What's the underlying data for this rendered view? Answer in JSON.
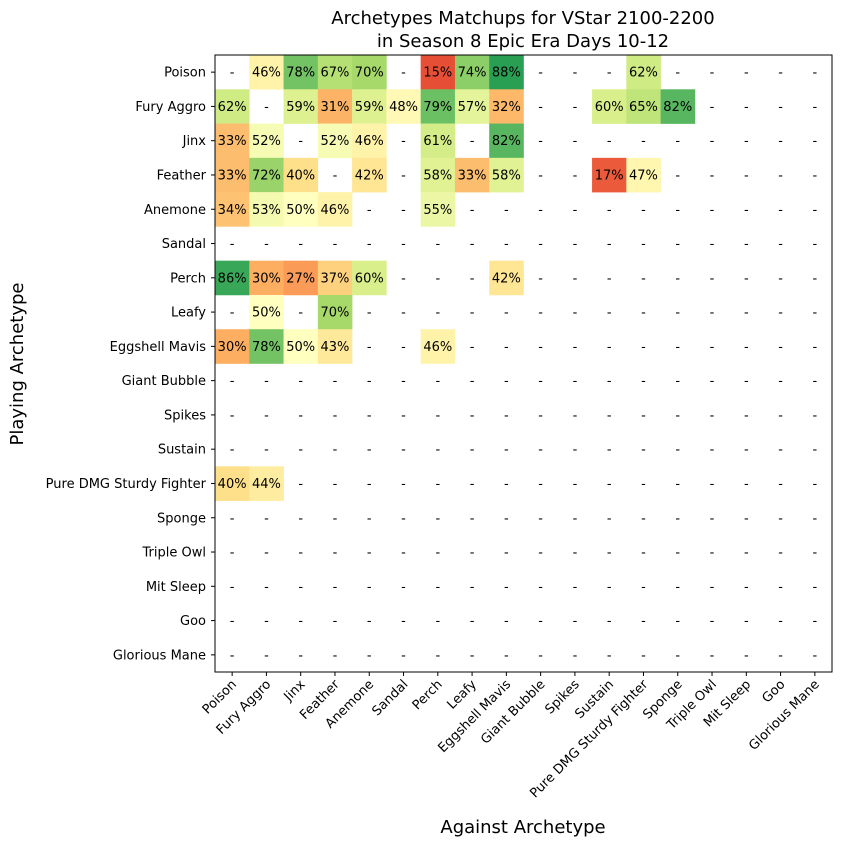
{
  "chart_data": {
    "type": "heatmap",
    "title": [
      "Archetypes Matchups for VStar 2100-2200",
      "in Season 8 Epic Era Days 10-12"
    ],
    "xlabel": "Against Archetype",
    "ylabel": "Playing Archetype",
    "rows": [
      "Poison",
      "Fury Aggro",
      "Jinx",
      "Feather",
      "Anemone",
      "Sandal",
      "Perch",
      "Leafy",
      "Eggshell Mavis",
      "Giant Bubble",
      "Spikes",
      "Sustain",
      "Pure DMG Sturdy Fighter",
      "Sponge",
      "Triple Owl",
      "Mit Sleep",
      "Goo",
      "Glorious Mane"
    ],
    "columns": [
      "Poison",
      "Fury Aggro",
      "Jinx",
      "Feather",
      "Anemone",
      "Sandal",
      "Perch",
      "Leafy",
      "Eggshell Mavis",
      "Giant Bubble",
      "Spikes",
      "Sustain",
      "Pure DMG Sturdy Fighter",
      "Sponge",
      "Triple Owl",
      "Mit Sleep",
      "Goo",
      "Glorious Mane"
    ],
    "missing_label": "-",
    "value_format": "percent",
    "color_scale": "red-yellow-green",
    "color_range": [
      0,
      100
    ],
    "values": [
      [
        null,
        46,
        78,
        67,
        70,
        null,
        15,
        74,
        88,
        null,
        null,
        null,
        62,
        null,
        null,
        null,
        null,
        null
      ],
      [
        62,
        null,
        59,
        31,
        59,
        48,
        79,
        57,
        32,
        null,
        null,
        60,
        65,
        82,
        null,
        null,
        null,
        null
      ],
      [
        33,
        52,
        null,
        52,
        46,
        null,
        61,
        null,
        82,
        null,
        null,
        null,
        null,
        null,
        null,
        null,
        null,
        null
      ],
      [
        33,
        72,
        40,
        null,
        42,
        null,
        58,
        33,
        58,
        null,
        null,
        17,
        47,
        null,
        null,
        null,
        null,
        null
      ],
      [
        34,
        53,
        50,
        46,
        null,
        null,
        55,
        null,
        null,
        null,
        null,
        null,
        null,
        null,
        null,
        null,
        null,
        null
      ],
      [
        null,
        null,
        null,
        null,
        null,
        null,
        null,
        null,
        null,
        null,
        null,
        null,
        null,
        null,
        null,
        null,
        null,
        null
      ],
      [
        86,
        30,
        27,
        37,
        60,
        null,
        null,
        null,
        42,
        null,
        null,
        null,
        null,
        null,
        null,
        null,
        null,
        null
      ],
      [
        null,
        50,
        null,
        70,
        null,
        null,
        null,
        null,
        null,
        null,
        null,
        null,
        null,
        null,
        null,
        null,
        null,
        null
      ],
      [
        30,
        78,
        50,
        43,
        null,
        null,
        46,
        null,
        null,
        null,
        null,
        null,
        null,
        null,
        null,
        null,
        null,
        null
      ],
      [
        null,
        null,
        null,
        null,
        null,
        null,
        null,
        null,
        null,
        null,
        null,
        null,
        null,
        null,
        null,
        null,
        null,
        null
      ],
      [
        null,
        null,
        null,
        null,
        null,
        null,
        null,
        null,
        null,
        null,
        null,
        null,
        null,
        null,
        null,
        null,
        null,
        null
      ],
      [
        null,
        null,
        null,
        null,
        null,
        null,
        null,
        null,
        null,
        null,
        null,
        null,
        null,
        null,
        null,
        null,
        null,
        null
      ],
      [
        40,
        44,
        null,
        null,
        null,
        null,
        null,
        null,
        null,
        null,
        null,
        null,
        null,
        null,
        null,
        null,
        null,
        null
      ],
      [
        null,
        null,
        null,
        null,
        null,
        null,
        null,
        null,
        null,
        null,
        null,
        null,
        null,
        null,
        null,
        null,
        null,
        null
      ],
      [
        null,
        null,
        null,
        null,
        null,
        null,
        null,
        null,
        null,
        null,
        null,
        null,
        null,
        null,
        null,
        null,
        null,
        null
      ],
      [
        null,
        null,
        null,
        null,
        null,
        null,
        null,
        null,
        null,
        null,
        null,
        null,
        null,
        null,
        null,
        null,
        null,
        null
      ],
      [
        null,
        null,
        null,
        null,
        null,
        null,
        null,
        null,
        null,
        null,
        null,
        null,
        null,
        null,
        null,
        null,
        null,
        null
      ],
      [
        null,
        null,
        null,
        null,
        null,
        null,
        null,
        null,
        null,
        null,
        null,
        null,
        null,
        null,
        null,
        null,
        null,
        null
      ]
    ]
  }
}
